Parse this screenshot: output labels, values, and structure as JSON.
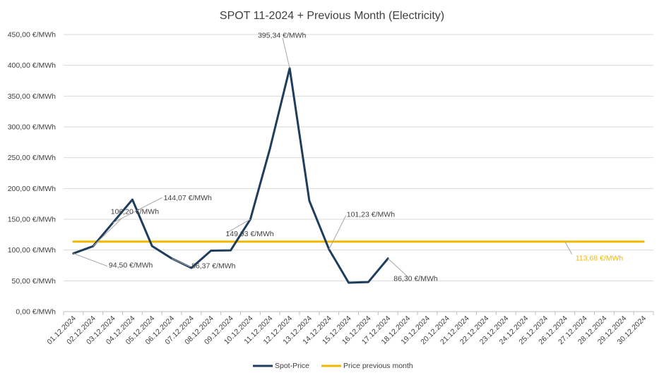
{
  "chart_data": {
    "type": "line",
    "title": "SPOT 11-2024 + Previous Month (Electricity)",
    "categories": [
      "01.12.2024",
      "02.12.2024",
      "03.12.2024",
      "04.12.2024",
      "05.12.2024",
      "06.12.2024",
      "07.12.2024",
      "08.12.2024",
      "09.12.2024",
      "10.12.2024",
      "11.12.2024",
      "12.12.2024",
      "13.12.2024",
      "14.12.2024",
      "15.12.2024",
      "16.12.2024",
      "17.12.2024",
      "18.12.2024",
      "19.12.2024",
      "20.12.2024",
      "21.12.2024",
      "22.12.2024",
      "23.12.2024",
      "24.12.2024",
      "25.12.2024",
      "26.12.2024",
      "27.12.2024",
      "28.12.2024",
      "29.12.2024",
      "30.12.2024"
    ],
    "ylim": [
      0,
      450
    ],
    "yticks": [
      {
        "value": 0,
        "label": "0,00 €/MWh"
      },
      {
        "value": 50,
        "label": "50,00 €/MWh"
      },
      {
        "value": 100,
        "label": "100,00 €/MWh"
      },
      {
        "value": 150,
        "label": "150,00 €/MWh"
      },
      {
        "value": 200,
        "label": "200,00 €/MWh"
      },
      {
        "value": 250,
        "label": "250,00 €/MWh"
      },
      {
        "value": 300,
        "label": "300,00 €/MWh"
      },
      {
        "value": 350,
        "label": "350,00 €/MWh"
      },
      {
        "value": 400,
        "label": "400,00 €/MWh"
      },
      {
        "value": 450,
        "label": "450,00 €/MWh"
      }
    ],
    "grid": true,
    "legend_position": "bottom",
    "series": [
      {
        "name": "Spot-Price",
        "color": "#1f3d5c",
        "values": [
          94.5,
          106.2,
          144.07,
          182,
          106.5,
          86.37,
          71,
          99,
          99.5,
          149.93,
          265,
          395.34,
          180,
          101.23,
          47,
          48,
          86.3,
          null,
          null,
          null,
          null,
          null,
          null,
          null,
          null,
          null,
          null,
          null,
          null,
          null
        ]
      },
      {
        "name": "Price previous month",
        "color": "#f2b800",
        "values": [
          113.68,
          113.68,
          113.68,
          113.68,
          113.68,
          113.68,
          113.68,
          113.68,
          113.68,
          113.68,
          113.68,
          113.68,
          113.68,
          113.68,
          113.68,
          113.68,
          113.68,
          113.68,
          113.68,
          113.68,
          113.68,
          113.68,
          113.68,
          113.68,
          113.68,
          113.68,
          113.68,
          113.68,
          113.68,
          113.68
        ]
      }
    ],
    "annotations": [
      {
        "series": 0,
        "index": 0,
        "text": "94,50 €/MWh"
      },
      {
        "series": 0,
        "index": 1,
        "text": "106,20 €/MWh"
      },
      {
        "series": 0,
        "index": 2,
        "text": "144,07 €/MWh"
      },
      {
        "series": 0,
        "index": 5,
        "text": "86,37 €/MWh"
      },
      {
        "series": 0,
        "index": 9,
        "text": "149,93 €/MWh"
      },
      {
        "series": 0,
        "index": 11,
        "text": "395,34 €/MWh"
      },
      {
        "series": 0,
        "index": 13,
        "text": "101,23 €/MWh"
      },
      {
        "series": 0,
        "index": 16,
        "text": "86,30 €/MWh"
      },
      {
        "series": 1,
        "index": 25,
        "text": "113,68 €/MWh"
      }
    ]
  }
}
